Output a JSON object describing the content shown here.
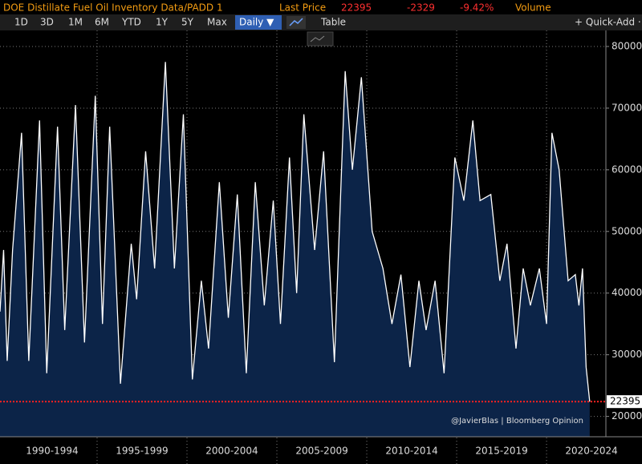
{
  "header": {
    "title": "DOE Distillate Fuel Oil Inventory Data/PADD 1",
    "last_price_label": "Last Price",
    "change": -2329,
    "change_pct": "-9.42%",
    "volume_label": "Volume",
    "buttons": [
      "1D",
      "3D",
      "1M",
      "6M",
      "YTD",
      "1Y",
      "5Y",
      "Max"
    ],
    "frequency": "Daily ▼",
    "table": "Table",
    "quick_add": "+ Quick-Add ·"
  },
  "chart_data": {
    "type": "area",
    "annotation": "@JavierBlas | Bloomberg Opinion",
    "last_value": 22395,
    "x": [
      1989.6,
      1989.8,
      1990.0,
      1990.3,
      1990.8,
      1991.2,
      1991.8,
      1992.2,
      1992.8,
      1993.2,
      1993.8,
      1994.3,
      1994.9,
      1995.3,
      1995.7,
      1996.3,
      1996.9,
      1997.2,
      1997.7,
      1998.2,
      1998.8,
      1999.3,
      1999.8,
      2000.3,
      2000.8,
      2001.2,
      2001.8,
      2002.3,
      2002.8,
      2003.3,
      2003.8,
      2004.3,
      2004.8,
      2005.2,
      2005.7,
      2006.1,
      2006.5,
      2007.1,
      2007.6,
      2008.2,
      2008.8,
      2009.2,
      2009.7,
      2010.3,
      2010.9,
      2011.4,
      2011.9,
      2012.4,
      2012.9,
      2013.3,
      2013.8,
      2014.3,
      2014.9,
      2015.4,
      2015.9,
      2016.3,
      2016.9,
      2017.4,
      2017.8,
      2018.3,
      2018.7,
      2019.1,
      2019.6,
      2020.0,
      2020.3,
      2020.7,
      2021.2,
      2021.6,
      2021.8,
      2022.0,
      2022.2,
      2022.4
    ],
    "series": [
      {
        "name": "PADD 1",
        "color": "#ffffff",
        "fill": "#0c2448",
        "values": [
          37000,
          47000,
          29000,
          47000,
          66000,
          29000,
          68000,
          27000,
          67000,
          34000,
          70500,
          32000,
          72000,
          35000,
          67000,
          25300,
          48000,
          39000,
          63000,
          44000,
          77500,
          44000,
          69000,
          26000,
          42000,
          31000,
          58000,
          36000,
          56000,
          27000,
          58000,
          38000,
          55000,
          35000,
          62000,
          40000,
          69000,
          47000,
          63000,
          28800,
          76000,
          60000,
          75000,
          50000,
          44000,
          35000,
          43000,
          28000,
          42000,
          34000,
          42000,
          27000,
          62000,
          55000,
          68000,
          55000,
          56000,
          42000,
          48000,
          31000,
          44000,
          38000,
          44000,
          35000,
          66000,
          60000,
          42000,
          43000,
          38000,
          44000,
          28000,
          22395
        ]
      }
    ],
    "xlim": [
      1989.6,
      2023.3
    ],
    "ylim": [
      16700,
      82600
    ],
    "xticks": [
      {
        "value": 1992.5,
        "label": "1990-1994"
      },
      {
        "value": 1997.5,
        "label": "1995-1999"
      },
      {
        "value": 2002.5,
        "label": "2000-2004"
      },
      {
        "value": 2007.5,
        "label": "2005-2009"
      },
      {
        "value": 2012.5,
        "label": "2010-2014"
      },
      {
        "value": 2017.5,
        "label": "2015-2019"
      },
      {
        "value": 2022.5,
        "label": "2020-2024"
      }
    ],
    "xgrid": [
      1995,
      2000,
      2005,
      2010,
      2015,
      2020
    ],
    "yticks": [
      20000,
      30000,
      40000,
      50000,
      60000,
      70000,
      80000
    ],
    "grid": true
  }
}
